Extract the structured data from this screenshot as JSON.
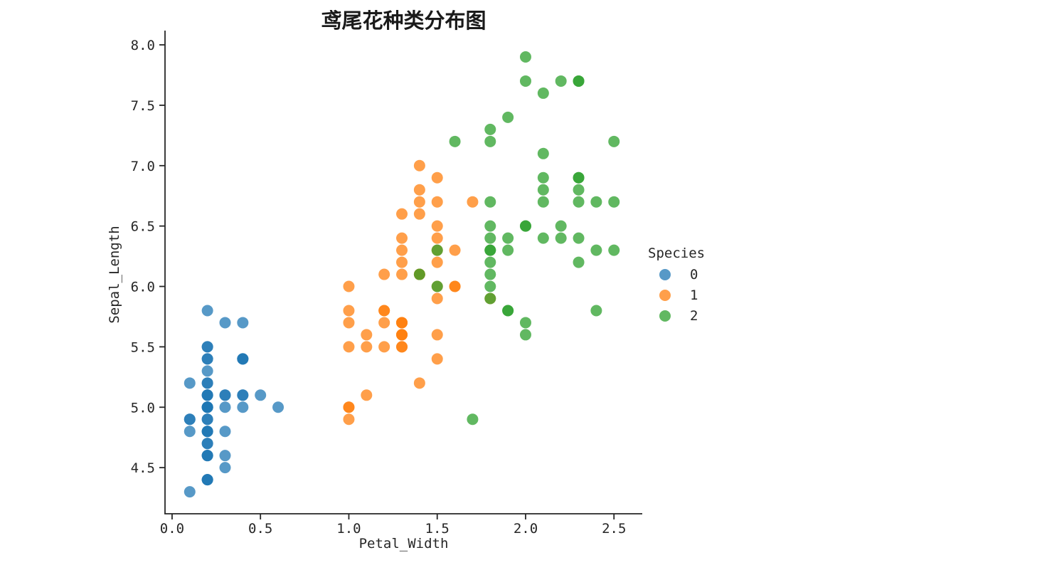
{
  "page": {
    "background": "#ffffff"
  },
  "chart_data": {
    "type": "scatter",
    "title": "鸢尾花种类分布图",
    "xlabel": "Petal_Width",
    "ylabel": "Sepal_Length",
    "xlim": [
      -0.04,
      2.66
    ],
    "ylim": [
      4.118,
      8.118
    ],
    "xticks": [
      0.0,
      0.5,
      1.0,
      1.5,
      2.0,
      2.5
    ],
    "yticks": [
      4.5,
      5.0,
      5.5,
      6.0,
      6.5,
      7.0,
      7.5,
      8.0
    ],
    "grid": false,
    "marker": {
      "shape": "circle",
      "radius": 8,
      "alpha": 0.75
    },
    "axis_color": "#262626",
    "text_color": "#262626",
    "legend": {
      "title": "Species",
      "position": "right-outside"
    },
    "series": [
      {
        "name": "0",
        "color": "#1f77b4",
        "points": [
          [
            0.2,
            5.1
          ],
          [
            0.2,
            4.9
          ],
          [
            0.2,
            4.7
          ],
          [
            0.2,
            4.6
          ],
          [
            0.2,
            5.0
          ],
          [
            0.4,
            5.4
          ],
          [
            0.3,
            4.6
          ],
          [
            0.2,
            5.0
          ],
          [
            0.2,
            4.4
          ],
          [
            0.1,
            4.9
          ],
          [
            0.2,
            5.4
          ],
          [
            0.2,
            4.8
          ],
          [
            0.1,
            4.8
          ],
          [
            0.1,
            4.3
          ],
          [
            0.2,
            5.8
          ],
          [
            0.4,
            5.7
          ],
          [
            0.4,
            5.4
          ],
          [
            0.3,
            5.1
          ],
          [
            0.3,
            5.7
          ],
          [
            0.3,
            5.1
          ],
          [
            0.2,
            5.4
          ],
          [
            0.4,
            5.1
          ],
          [
            0.2,
            4.6
          ],
          [
            0.5,
            5.1
          ],
          [
            0.2,
            4.8
          ],
          [
            0.2,
            5.0
          ],
          [
            0.4,
            5.0
          ],
          [
            0.2,
            5.2
          ],
          [
            0.2,
            5.2
          ],
          [
            0.2,
            4.7
          ],
          [
            0.2,
            4.8
          ],
          [
            0.4,
            5.4
          ],
          [
            0.1,
            5.2
          ],
          [
            0.2,
            5.5
          ],
          [
            0.2,
            4.9
          ],
          [
            0.2,
            5.0
          ],
          [
            0.2,
            5.5
          ],
          [
            0.1,
            4.9
          ],
          [
            0.2,
            4.4
          ],
          [
            0.2,
            5.1
          ],
          [
            0.3,
            5.0
          ],
          [
            0.3,
            4.5
          ],
          [
            0.2,
            4.4
          ],
          [
            0.6,
            5.0
          ],
          [
            0.4,
            5.1
          ],
          [
            0.3,
            4.8
          ],
          [
            0.2,
            5.1
          ],
          [
            0.2,
            4.6
          ],
          [
            0.2,
            5.3
          ],
          [
            0.2,
            5.0
          ]
        ]
      },
      {
        "name": "1",
        "color": "#ff7f0e",
        "points": [
          [
            1.4,
            7.0
          ],
          [
            1.5,
            6.4
          ],
          [
            1.5,
            6.9
          ],
          [
            1.3,
            5.5
          ],
          [
            1.5,
            6.5
          ],
          [
            1.3,
            5.7
          ],
          [
            1.6,
            6.3
          ],
          [
            1.0,
            4.9
          ],
          [
            1.3,
            6.6
          ],
          [
            1.4,
            5.2
          ],
          [
            1.0,
            5.0
          ],
          [
            1.5,
            5.9
          ],
          [
            1.0,
            6.0
          ],
          [
            1.4,
            6.1
          ],
          [
            1.3,
            5.6
          ],
          [
            1.4,
            6.7
          ],
          [
            1.5,
            5.6
          ],
          [
            1.0,
            5.8
          ],
          [
            1.5,
            6.2
          ],
          [
            1.1,
            5.6
          ],
          [
            1.8,
            5.9
          ],
          [
            1.3,
            6.1
          ],
          [
            1.5,
            6.3
          ],
          [
            1.2,
            6.1
          ],
          [
            1.3,
            6.4
          ],
          [
            1.4,
            6.6
          ],
          [
            1.4,
            6.8
          ],
          [
            1.7,
            6.7
          ],
          [
            1.5,
            6.0
          ],
          [
            1.0,
            5.7
          ],
          [
            1.1,
            5.5
          ],
          [
            1.0,
            5.5
          ],
          [
            1.2,
            5.8
          ],
          [
            1.6,
            6.0
          ],
          [
            1.5,
            5.4
          ],
          [
            1.6,
            6.0
          ],
          [
            1.5,
            6.7
          ],
          [
            1.3,
            6.3
          ],
          [
            1.3,
            5.6
          ],
          [
            1.3,
            5.5
          ],
          [
            1.2,
            5.5
          ],
          [
            1.4,
            6.1
          ],
          [
            1.2,
            5.8
          ],
          [
            1.0,
            5.0
          ],
          [
            1.3,
            5.6
          ],
          [
            1.2,
            5.7
          ],
          [
            1.3,
            5.7
          ],
          [
            1.3,
            6.2
          ],
          [
            1.1,
            5.1
          ],
          [
            1.3,
            5.7
          ]
        ]
      },
      {
        "name": "2",
        "color": "#2ca02c",
        "points": [
          [
            2.5,
            6.3
          ],
          [
            1.9,
            5.8
          ],
          [
            2.1,
            7.1
          ],
          [
            1.8,
            6.3
          ],
          [
            2.2,
            6.5
          ],
          [
            2.1,
            7.6
          ],
          [
            1.7,
            4.9
          ],
          [
            1.8,
            7.3
          ],
          [
            1.8,
            6.7
          ],
          [
            2.5,
            7.2
          ],
          [
            2.0,
            6.5
          ],
          [
            1.9,
            6.4
          ],
          [
            2.1,
            6.8
          ],
          [
            2.0,
            5.7
          ],
          [
            2.4,
            5.8
          ],
          [
            2.3,
            6.4
          ],
          [
            1.8,
            6.5
          ],
          [
            2.2,
            7.7
          ],
          [
            2.3,
            7.7
          ],
          [
            1.5,
            6.0
          ],
          [
            2.3,
            6.9
          ],
          [
            2.0,
            5.6
          ],
          [
            2.0,
            7.7
          ],
          [
            1.8,
            6.3
          ],
          [
            2.1,
            6.7
          ],
          [
            1.8,
            7.2
          ],
          [
            1.8,
            6.2
          ],
          [
            1.8,
            6.1
          ],
          [
            2.1,
            6.4
          ],
          [
            1.6,
            7.2
          ],
          [
            1.9,
            7.4
          ],
          [
            2.0,
            7.9
          ],
          [
            2.2,
            6.4
          ],
          [
            1.5,
            6.3
          ],
          [
            1.4,
            6.1
          ],
          [
            2.3,
            7.7
          ],
          [
            2.4,
            6.3
          ],
          [
            1.8,
            6.4
          ],
          [
            1.8,
            6.0
          ],
          [
            2.1,
            6.9
          ],
          [
            2.4,
            6.7
          ],
          [
            2.3,
            6.9
          ],
          [
            1.9,
            5.8
          ],
          [
            2.3,
            6.8
          ],
          [
            2.5,
            6.7
          ],
          [
            2.3,
            6.7
          ],
          [
            1.9,
            6.3
          ],
          [
            2.0,
            6.5
          ],
          [
            2.3,
            6.2
          ],
          [
            1.8,
            5.9
          ]
        ]
      }
    ]
  }
}
